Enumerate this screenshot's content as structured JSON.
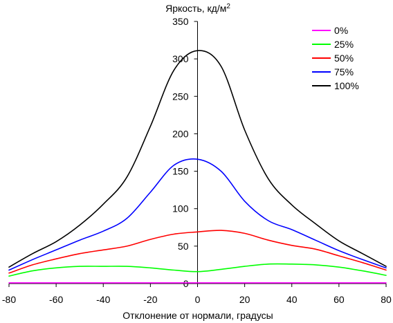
{
  "chart_data": {
    "type": "line",
    "title": "",
    "ylabel": "Яркость, кд/м",
    "ylabel_sup": "2",
    "xlabel": "Отклонение от нормали, градусы",
    "xlim": [
      -80,
      80
    ],
    "ylim": [
      0,
      350
    ],
    "x_ticks": [
      "-80",
      "-60",
      "-40",
      "-20",
      "0",
      "20",
      "40",
      "60",
      "80"
    ],
    "y_ticks": [
      "0",
      "50",
      "100",
      "150",
      "200",
      "250",
      "300",
      "350"
    ],
    "grid": false,
    "legend_position": "top-right",
    "x": [
      -80,
      -70,
      -60,
      -50,
      -40,
      -30,
      -20,
      -10,
      0,
      10,
      20,
      30,
      40,
      50,
      60,
      70,
      80
    ],
    "series": [
      {
        "name": "0%",
        "color": "#ff00ff",
        "values": [
          1,
          1,
          1,
          1,
          1,
          1,
          1,
          1,
          1,
          1,
          1,
          1,
          1,
          1,
          1,
          1,
          1
        ]
      },
      {
        "name": "25%",
        "color": "#00ff00",
        "values": [
          10,
          17,
          21,
          23,
          23,
          23,
          21,
          18,
          16,
          19,
          23,
          26,
          26,
          25,
          22,
          17,
          11
        ]
      },
      {
        "name": "50%",
        "color": "#ff0000",
        "values": [
          14,
          25,
          33,
          40,
          45,
          50,
          59,
          66,
          69,
          71,
          67,
          58,
          51,
          46,
          37,
          28,
          18
        ]
      },
      {
        "name": "75%",
        "color": "#0000ff",
        "values": [
          18,
          32,
          45,
          58,
          70,
          87,
          122,
          158,
          166,
          150,
          110,
          84,
          72,
          58,
          44,
          32,
          21
        ]
      },
      {
        "name": "100%",
        "color": "#000000",
        "values": [
          22,
          40,
          56,
          78,
          106,
          142,
          210,
          285,
          311,
          290,
          205,
          140,
          105,
          80,
          57,
          40,
          23
        ]
      }
    ]
  }
}
